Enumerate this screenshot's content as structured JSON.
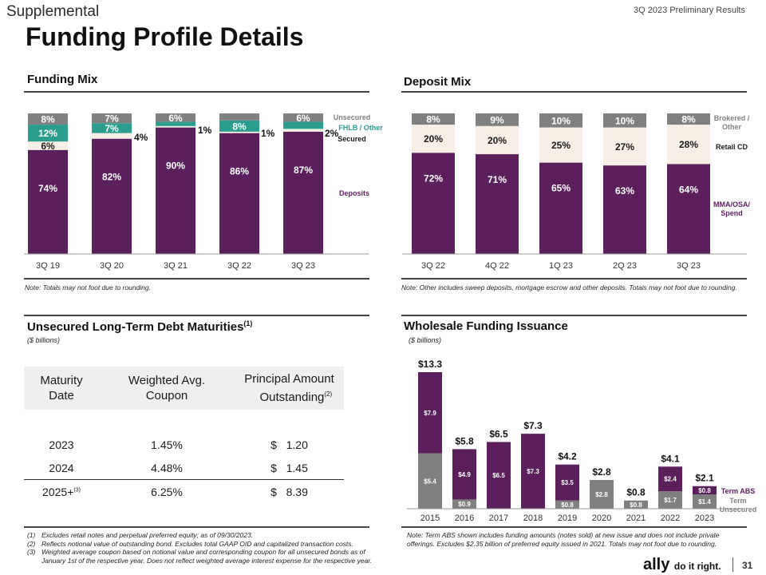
{
  "header": {
    "section": "Supplemental",
    "period": "3Q 2023 Preliminary Results",
    "title": "Funding Profile Details"
  },
  "colors": {
    "deposits": "#5a1f5c",
    "fhlb": "#2a9d8f",
    "secured": "#f7efe6",
    "unsecured": "#808080",
    "dark": "#1a1a1a"
  },
  "funding_mix": {
    "title": "Funding Mix",
    "note": "Note: Totals may not foot due to rounding.",
    "legend": {
      "unsecured": "Unsecured",
      "fhlb": "FHLB / Other",
      "secured": "Secured",
      "deposits": "Deposits"
    },
    "outside_labels": [
      "4%",
      "1%",
      "1%",
      "2%"
    ]
  },
  "deposit_mix": {
    "title": "Deposit Mix",
    "note": "Note: Other includes sweep deposits, mortgage escrow and other deposits. Totals may not foot due to rounding.",
    "legend": {
      "brokered": "Brokered / Other",
      "retail": "Retail CD",
      "mma": "MMA/OSA/ Spend"
    }
  },
  "debt": {
    "title": "Unsecured Long-Term Debt Maturities",
    "title_sup": "(1)",
    "unit": "($ billions)",
    "headers": {
      "maturity": "Maturity Date",
      "coupon": "Weighted Avg. Coupon",
      "principal": "Principal Amount Outstanding",
      "principal_sup": "(2)"
    },
    "rows": [
      {
        "date": "2023",
        "sup": "",
        "coupon": "1.45%",
        "dollar": "$",
        "amount": "1.20"
      },
      {
        "date": "2024",
        "sup": "",
        "coupon": "4.48%",
        "dollar": "$",
        "amount": "1.45"
      },
      {
        "date": "2025+",
        "sup": "(3)",
        "coupon": "6.25%",
        "dollar": "$",
        "amount": "8.39"
      }
    ],
    "footnotes": [
      {
        "marker": "(1)",
        "text": "Excludes retail notes and perpetual preferred equity; as of 09/30/2023."
      },
      {
        "marker": "(2)",
        "text": "Reflects notional value of outstanding bond. Excludes total GAAP OID and capitalized transaction costs."
      },
      {
        "marker": "(3)",
        "text": "Weighted average coupon based on notional value and corresponding coupon for all unsecured bonds as of January 1st of the respective year. Does not reflect weighted average interest expense for the respective year."
      }
    ]
  },
  "wholesale": {
    "title": "Wholesale Funding Issuance",
    "unit": "($ billions)",
    "legend": {
      "abs": "Term ABS",
      "unsec": "Term Unsecured"
    },
    "note": "Note: Term ABS shown includes funding amounts (notes sold) at new issue and does not include private offerings. Excludes $2.35 billion of preferred equity issued in 2021. Totals may not foot due to rounding."
  },
  "footer": {
    "logo": "ally",
    "tagline": "do it right.",
    "page": "31"
  },
  "chart_data": [
    {
      "type": "bar",
      "title": "Funding Mix",
      "stacked": true,
      "categories": [
        "3Q 19",
        "3Q 20",
        "3Q 21",
        "3Q 22",
        "3Q 23"
      ],
      "series": [
        {
          "name": "Deposits",
          "values": [
            74,
            82,
            90,
            86,
            87
          ],
          "labels": [
            "74%",
            "82%",
            "90%",
            "86%",
            "87%"
          ]
        },
        {
          "name": "Secured",
          "values": [
            6,
            4,
            1,
            1,
            2
          ],
          "labels": [
            "6%",
            "4%",
            "1%",
            "1%",
            "2%"
          ]
        },
        {
          "name": "FHLB / Other",
          "values": [
            12,
            7,
            3,
            8,
            5
          ],
          "labels": [
            "12%",
            "7%",
            "3%",
            "8%",
            "5%"
          ]
        },
        {
          "name": "Unsecured",
          "values": [
            8,
            7,
            6,
            5,
            6
          ],
          "labels": [
            "8%",
            "7%",
            "6%",
            "5%",
            "6%"
          ]
        }
      ],
      "ylim": [
        0,
        100
      ]
    },
    {
      "type": "bar",
      "title": "Deposit Mix",
      "stacked": true,
      "categories": [
        "3Q 22",
        "4Q 22",
        "1Q 23",
        "2Q 23",
        "3Q 23"
      ],
      "series": [
        {
          "name": "MMA/OSA/ Spend",
          "values": [
            72,
            71,
            65,
            63,
            64
          ],
          "labels": [
            "72%",
            "71%",
            "65%",
            "63%",
            "64%"
          ]
        },
        {
          "name": "Retail CD",
          "values": [
            20,
            20,
            25,
            27,
            28
          ],
          "labels": [
            "20%",
            "20%",
            "25%",
            "27%",
            "28%"
          ]
        },
        {
          "name": "Brokered / Other",
          "values": [
            8,
            9,
            10,
            10,
            8
          ],
          "labels": [
            "8%",
            "9%",
            "10%",
            "10%",
            "8%"
          ]
        }
      ],
      "ylim": [
        0,
        100
      ]
    },
    {
      "type": "bar",
      "title": "Wholesale Funding Issuance",
      "stacked": true,
      "ylabel": "($ billions)",
      "categories": [
        "2015",
        "2016",
        "2017",
        "2018",
        "2019",
        "2020",
        "2021",
        "2022",
        "2023"
      ],
      "series": [
        {
          "name": "Term Unsecured",
          "values": [
            5.4,
            0.9,
            0,
            0,
            0.8,
            2.8,
            0.8,
            1.7,
            1.4
          ],
          "labels": [
            "$5.4",
            "$0.9",
            "",
            "",
            "$0.8",
            "$2.8",
            "$0.8",
            "$1.7",
            "$1.4"
          ]
        },
        {
          "name": "Term ABS",
          "values": [
            7.9,
            4.9,
            6.5,
            7.3,
            3.5,
            0,
            0,
            2.4,
            0.8
          ],
          "labels": [
            "$7.9",
            "$4.9",
            "$6.5",
            "$7.3",
            "$3.5",
            "",
            "",
            "$2.4",
            "$0.8"
          ]
        }
      ],
      "totals": [
        "$13.3",
        "$5.8",
        "$6.5",
        "$7.3",
        "$4.2",
        "$2.8",
        "$0.8",
        "$4.1",
        "$2.1"
      ],
      "ylim": [
        0,
        13.3
      ]
    }
  ]
}
